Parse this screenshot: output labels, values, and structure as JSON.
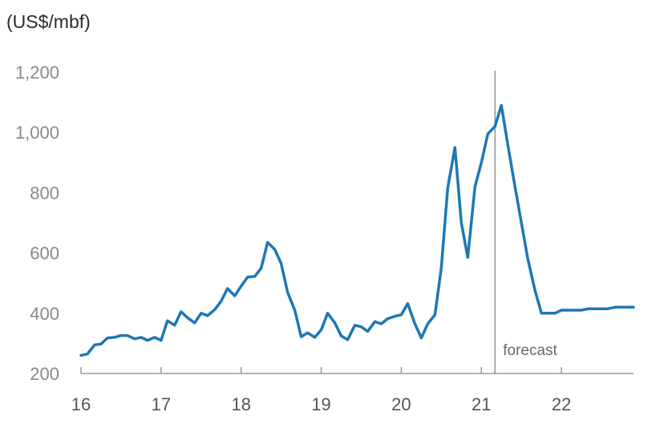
{
  "chart_data": {
    "type": "line",
    "ylabel": "(US$/mbf)",
    "ylim": [
      200,
      1200
    ],
    "yticks": [
      200,
      400,
      600,
      800,
      1000,
      1200
    ],
    "ytick_labels": [
      "200",
      "400",
      "600",
      "800",
      "1,000",
      "1,200"
    ],
    "xlim": [
      16,
      22.9
    ],
    "xticks": [
      16,
      17,
      18,
      19,
      20,
      21,
      22
    ],
    "xtick_labels": [
      "16",
      "17",
      "18",
      "19",
      "20",
      "21",
      "22"
    ],
    "grid": false,
    "color": "#1f77b4",
    "forecast_start": 21.17,
    "annotation": "forecast",
    "series": [
      {
        "x": [
          16.0,
          16.08,
          16.17,
          16.25,
          16.33,
          16.42,
          16.5,
          16.58,
          16.67,
          16.75,
          16.83,
          16.92,
          17.0,
          17.08,
          17.17,
          17.25,
          17.33,
          17.42,
          17.5,
          17.58,
          17.67,
          17.75,
          17.83,
          17.92,
          18.0,
          18.08,
          18.17,
          18.25,
          18.33,
          18.42,
          18.5,
          18.58,
          18.67,
          18.75,
          18.83,
          18.92,
          19.0,
          19.08,
          19.17,
          19.25,
          19.33,
          19.42,
          19.5,
          19.58,
          19.67,
          19.75,
          19.83,
          19.92,
          20.0,
          20.08,
          20.17,
          20.25,
          20.33,
          20.42,
          20.5,
          20.58,
          20.67,
          20.75,
          20.83,
          20.92,
          21.0,
          21.08,
          21.17,
          21.25,
          21.33,
          21.42,
          21.5,
          21.58,
          21.67,
          21.75,
          21.83,
          21.92,
          22.0,
          22.08,
          22.17,
          22.25,
          22.33,
          22.42,
          22.5,
          22.58,
          22.67,
          22.75,
          22.83,
          22.9
        ],
        "y": [
          260,
          265,
          295,
          298,
          318,
          320,
          326,
          326,
          315,
          320,
          310,
          320,
          310,
          375,
          360,
          405,
          385,
          368,
          400,
          392,
          412,
          440,
          482,
          458,
          490,
          520,
          522,
          550,
          635,
          612,
          565,
          470,
          410,
          322,
          335,
          320,
          345,
          400,
          368,
          325,
          312,
          360,
          355,
          340,
          372,
          365,
          382,
          390,
          395,
          432,
          365,
          318,
          365,
          395,
          550,
          815,
          950,
          700,
          585,
          820,
          900,
          995,
          1020,
          1090,
          960,
          820,
          700,
          580,
          475,
          400,
          400,
          400,
          410,
          410,
          410,
          410,
          415,
          415,
          415,
          415,
          420,
          420,
          420,
          420
        ]
      }
    ]
  }
}
